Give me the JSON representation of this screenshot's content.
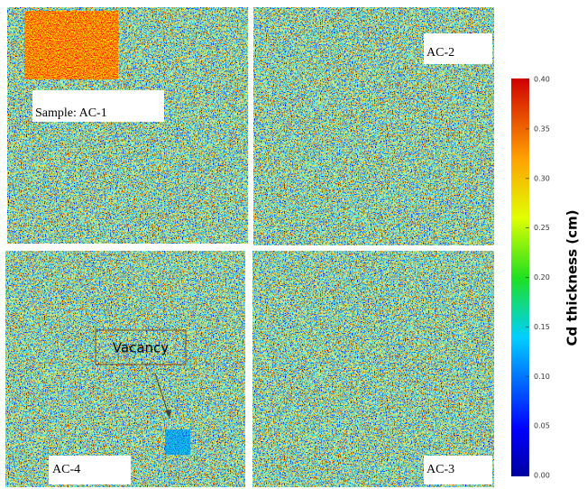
{
  "panels": [
    {
      "label": "Sample: AC-1"
    },
    {
      "label": "AC-2"
    },
    {
      "label": "AC-4"
    },
    {
      "label": "AC-3"
    }
  ],
  "annotation": "Vacancy",
  "colorbar": {
    "title": "Cd thickness (cm)",
    "ticks": [
      "0.40",
      "0.35",
      "0.30",
      "0.25",
      "0.20",
      "0.15",
      "0.10",
      "0.05",
      "0.00"
    ]
  }
}
